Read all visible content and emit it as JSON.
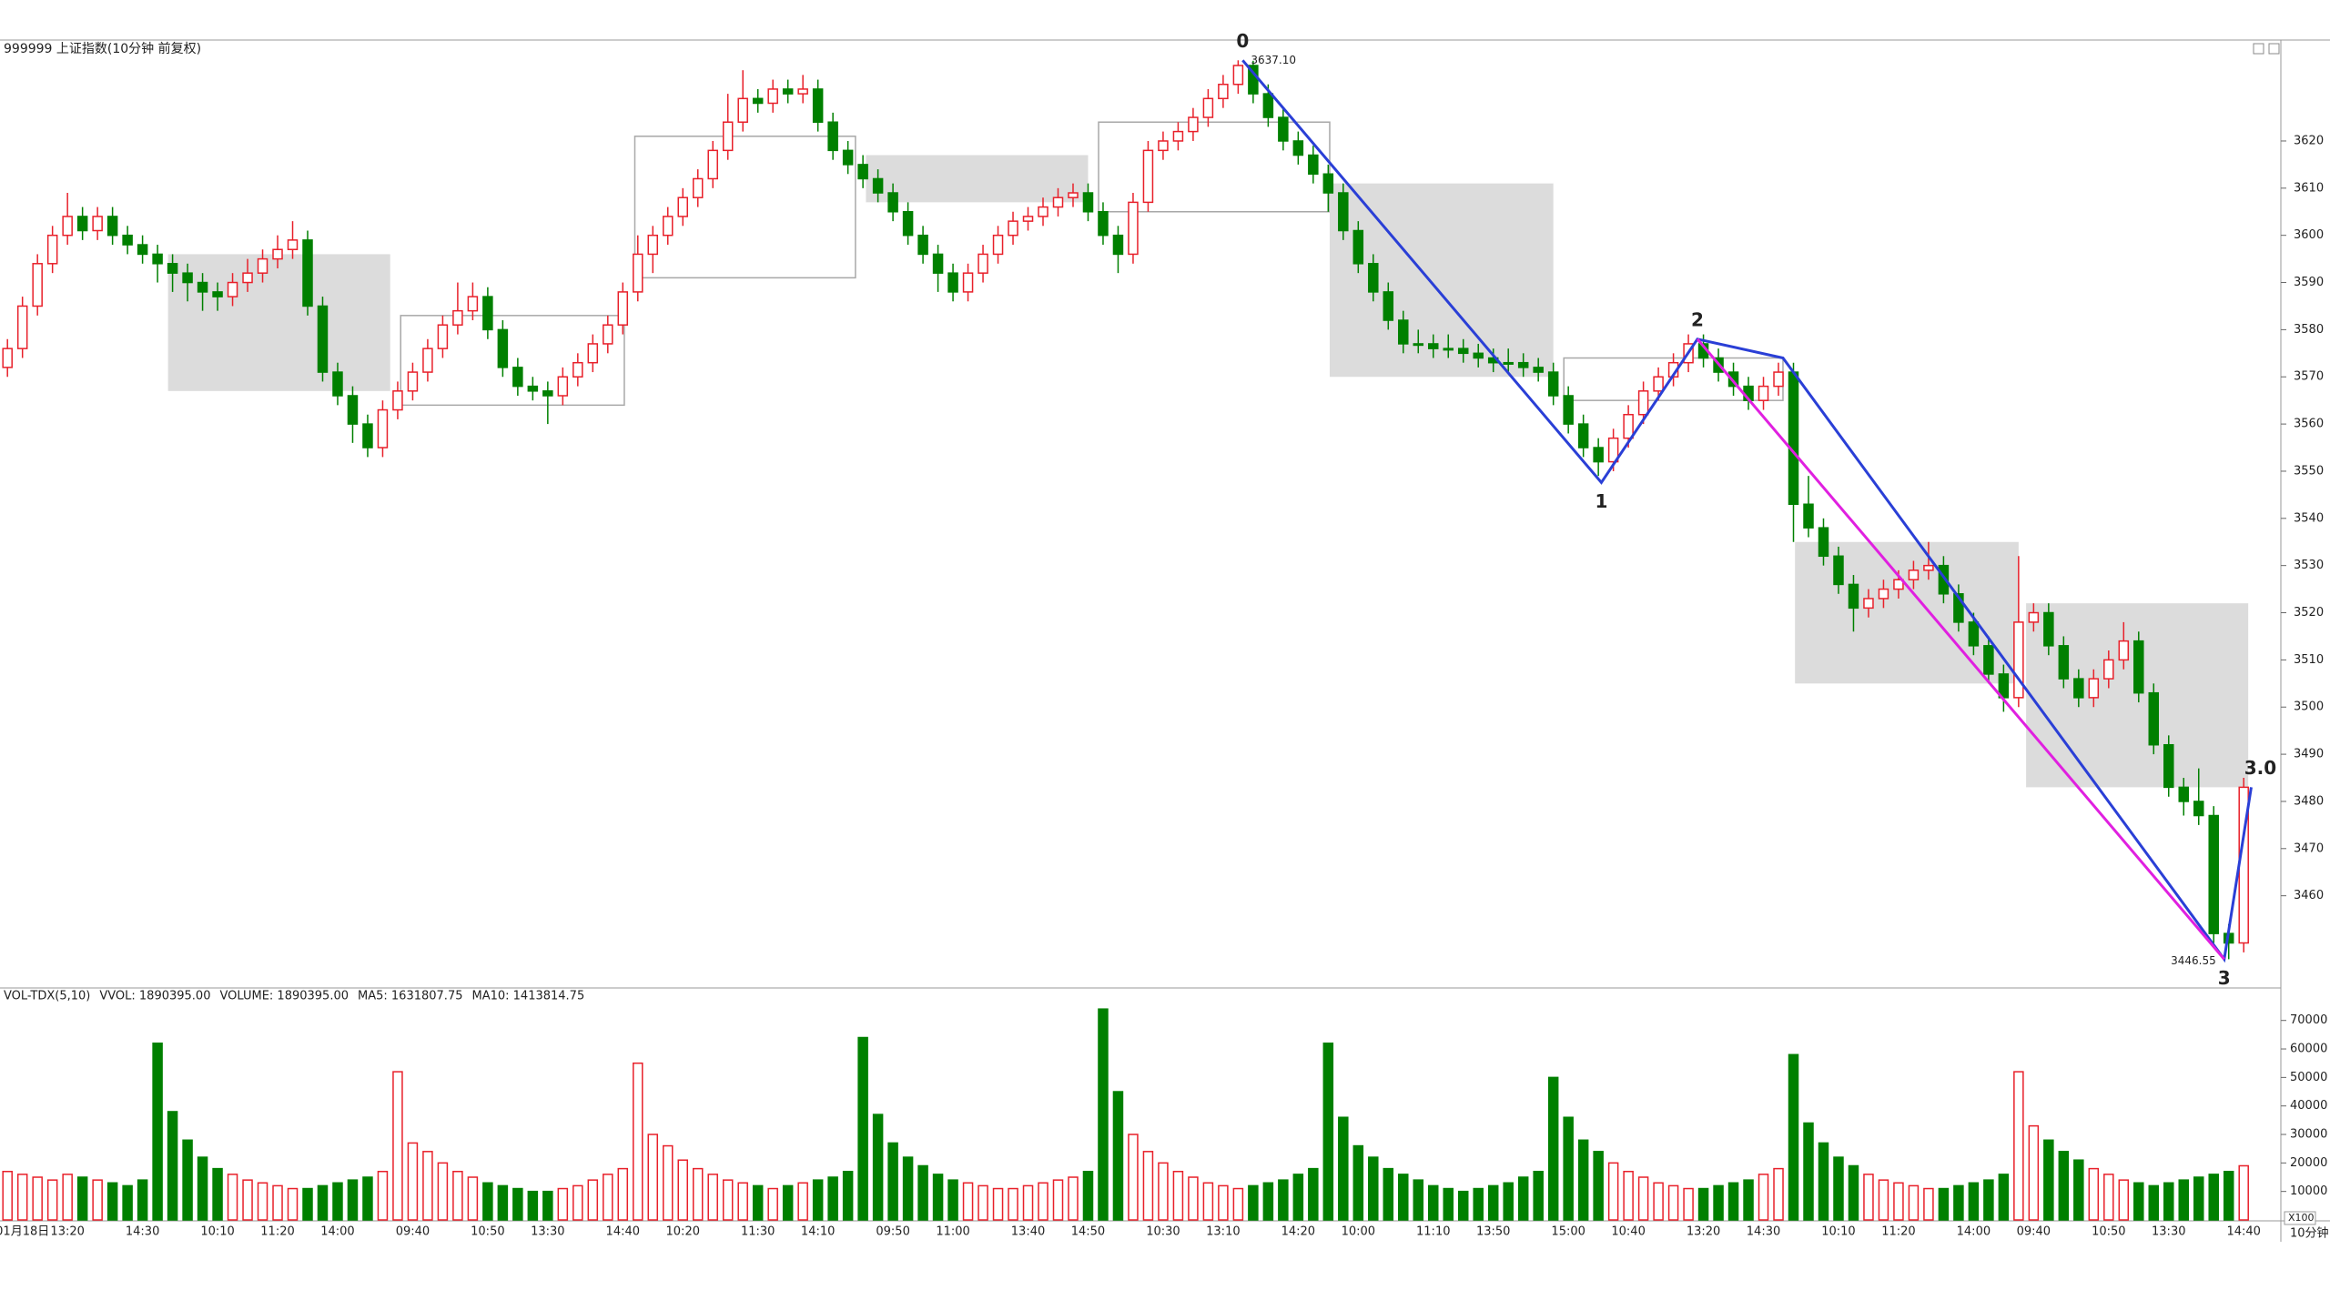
{
  "chart_data": [
    {
      "type": "candlestick",
      "title": "999999 上证指数(10分钟 前复权)",
      "up_color": "#e8202a",
      "down_color": "#008000",
      "box_fill": "#dcdcdc",
      "box_stroke": "#a8a8a8",
      "grid": false,
      "ylim": [
        3442,
        3641.4
      ],
      "yticks": [
        3460,
        3470,
        3480,
        3490,
        3500,
        3510,
        3520,
        3530,
        3540,
        3550,
        3560,
        3570,
        3580,
        3590,
        3600,
        3610,
        3620
      ],
      "categories": [
        null,
        "01月18日",
        null,
        null,
        "13:20",
        null,
        null,
        null,
        null,
        "14:30",
        null,
        null,
        null,
        null,
        "10:10",
        null,
        null,
        null,
        "11:20",
        null,
        null,
        null,
        "14:00",
        null,
        null,
        null,
        null,
        "09:40",
        null,
        null,
        null,
        null,
        "10:50",
        null,
        null,
        null,
        "13:30",
        null,
        null,
        null,
        null,
        "14:40",
        null,
        null,
        null,
        "10:20",
        null,
        null,
        null,
        null,
        "11:30",
        null,
        null,
        null,
        "14:10",
        null,
        null,
        null,
        null,
        "09:50",
        null,
        null,
        null,
        "11:00",
        null,
        null,
        null,
        null,
        "13:40",
        null,
        null,
        null,
        "14:50",
        null,
        null,
        null,
        null,
        "10:30",
        null,
        null,
        null,
        "13:10",
        null,
        null,
        null,
        null,
        "14:20",
        null,
        null,
        null,
        "10:00",
        null,
        null,
        null,
        null,
        "11:10",
        null,
        null,
        null,
        "13:50",
        null,
        null,
        null,
        null,
        "15:00",
        null,
        null,
        null,
        "10:40",
        null,
        null,
        null,
        null,
        "13:20",
        null,
        null,
        null,
        "14:30",
        null,
        null,
        null,
        null,
        "10:10",
        null,
        null,
        null,
        "11:20",
        null,
        null,
        null,
        null,
        "14:00",
        null,
        null,
        null,
        "09:40",
        null,
        null,
        null,
        null,
        "10:50",
        null,
        null,
        null,
        "13:30",
        null,
        null,
        null,
        null,
        "14:40"
      ],
      "open": [
        3572,
        3576,
        3585,
        3594,
        3600,
        3604,
        3601,
        3604,
        3600,
        3598,
        3596,
        3594,
        3592,
        3590,
        3588,
        3587,
        3590,
        3592,
        3595,
        3597,
        3599,
        3585,
        3571,
        3566,
        3560,
        3555,
        3563,
        3567,
        3571,
        3576,
        3581,
        3584,
        3587,
        3580,
        3572,
        3568,
        3567,
        3566,
        3570,
        3573,
        3577,
        3581,
        3588,
        3596,
        3600,
        3604,
        3608,
        3612,
        3618,
        3624,
        3629,
        3628,
        3631,
        3630,
        3631,
        3624,
        3618,
        3615,
        3612,
        3609,
        3605,
        3600,
        3596,
        3592,
        3588,
        3592,
        3596,
        3600,
        3603,
        3604,
        3606,
        3608,
        3609,
        3605,
        3600,
        3596,
        3607,
        3618,
        3620,
        3622,
        3625,
        3629,
        3632,
        3636,
        3630,
        3625,
        3620,
        3617,
        3613,
        3609,
        3601,
        3594,
        3588,
        3582,
        3577,
        3577,
        3576,
        3576,
        3575,
        3574,
        3573,
        3573,
        3572,
        3571,
        3566,
        3560,
        3555,
        3552,
        3557,
        3562,
        3567,
        3570,
        3573,
        3577,
        3574,
        3571,
        3568,
        3565,
        3568,
        3571,
        3543,
        3538,
        3532,
        3526,
        3521,
        3523,
        3525,
        3527,
        3529,
        3530,
        3524,
        3518,
        3513,
        3507,
        3502,
        3518,
        3520,
        3513,
        3506,
        3502,
        3506,
        3510,
        3514,
        3503,
        3492,
        3483,
        3480,
        3477,
        3452,
        3450
      ],
      "high": [
        3578,
        3587,
        3596,
        3602,
        3609,
        3606,
        3606,
        3606,
        3602,
        3600,
        3598,
        3596,
        3594,
        3592,
        3590,
        3592,
        3595,
        3597,
        3600,
        3603,
        3601,
        3587,
        3573,
        3568,
        3562,
        3565,
        3569,
        3573,
        3578,
        3583,
        3590,
        3590,
        3589,
        3582,
        3574,
        3570,
        3569,
        3572,
        3575,
        3579,
        3583,
        3590,
        3600,
        3602,
        3606,
        3610,
        3614,
        3620,
        3630,
        3635,
        3631,
        3633,
        3633,
        3634,
        3633,
        3626,
        3620,
        3617,
        3614,
        3611,
        3607,
        3602,
        3598,
        3594,
        3594,
        3598,
        3602,
        3605,
        3606,
        3608,
        3610,
        3611,
        3611,
        3607,
        3602,
        3609,
        3620,
        3622,
        3624,
        3627,
        3631,
        3634,
        3637.1,
        3637,
        3632,
        3627,
        3622,
        3619,
        3615,
        3611,
        3603,
        3596,
        3590,
        3584,
        3580,
        3579,
        3579,
        3578,
        3577,
        3576,
        3576,
        3575,
        3574,
        3573,
        3568,
        3562,
        3557,
        3559,
        3564,
        3569,
        3572,
        3575,
        3579,
        3579,
        3576,
        3573,
        3570,
        3570,
        3573,
        3573,
        3549,
        3540,
        3534,
        3528,
        3525,
        3527,
        3529,
        3531,
        3535,
        3532,
        3526,
        3520,
        3515,
        3509,
        3532,
        3522,
        3522,
        3515,
        3508,
        3508,
        3512,
        3518,
        3516,
        3505,
        3494,
        3485,
        3487,
        3479,
        3454,
        3485
      ],
      "low": [
        3570,
        3574,
        3583,
        3592,
        3598,
        3599,
        3599,
        3598,
        3596,
        3594,
        3590,
        3588,
        3586,
        3584,
        3584,
        3585,
        3588,
        3590,
        3593,
        3595,
        3583,
        3569,
        3564,
        3556,
        3553,
        3553,
        3561,
        3565,
        3569,
        3574,
        3579,
        3582,
        3578,
        3570,
        3566,
        3565,
        3560,
        3564,
        3568,
        3571,
        3575,
        3579,
        3586,
        3592,
        3598,
        3602,
        3606,
        3610,
        3616,
        3622,
        3626,
        3626,
        3628,
        3628,
        3622,
        3616,
        3613,
        3610,
        3607,
        3603,
        3598,
        3594,
        3588,
        3586,
        3586,
        3590,
        3594,
        3598,
        3601,
        3602,
        3604,
        3606,
        3603,
        3598,
        3592,
        3594,
        3605,
        3616,
        3618,
        3620,
        3623,
        3627,
        3630,
        3628,
        3623,
        3618,
        3615,
        3611,
        3605,
        3599,
        3592,
        3586,
        3580,
        3575,
        3575,
        3574,
        3574,
        3573,
        3572,
        3571,
        3571,
        3570,
        3569,
        3564,
        3558,
        3553,
        3549,
        3550,
        3555,
        3560,
        3565,
        3568,
        3571,
        3572,
        3569,
        3566,
        3563,
        3563,
        3566,
        3535,
        3536,
        3530,
        3524,
        3516,
        3519,
        3521,
        3523,
        3525,
        3527,
        3522,
        3516,
        3511,
        3505,
        3499,
        3500,
        3516,
        3511,
        3504,
        3500,
        3500,
        3504,
        3508,
        3501,
        3490,
        3481,
        3477,
        3475,
        3450,
        3446.55,
        3448
      ],
      "close": [
        3576,
        3585,
        3594,
        3600,
        3604,
        3601,
        3604,
        3600,
        3598,
        3596,
        3594,
        3592,
        3590,
        3588,
        3587,
        3590,
        3592,
        3595,
        3597,
        3599,
        3585,
        3571,
        3566,
        3560,
        3555,
        3563,
        3567,
        3571,
        3576,
        3581,
        3584,
        3587,
        3580,
        3572,
        3568,
        3567,
        3566,
        3570,
        3573,
        3577,
        3581,
        3588,
        3596,
        3600,
        3604,
        3608,
        3612,
        3618,
        3624,
        3629,
        3628,
        3631,
        3630,
        3631,
        3624,
        3618,
        3615,
        3612,
        3609,
        3605,
        3600,
        3596,
        3592,
        3588,
        3592,
        3596,
        3600,
        3603,
        3604,
        3606,
        3608,
        3609,
        3605,
        3600,
        3596,
        3607,
        3618,
        3620,
        3622,
        3625,
        3629,
        3632,
        3636,
        3630,
        3625,
        3620,
        3617,
        3613,
        3609,
        3601,
        3594,
        3588,
        3582,
        3577,
        3577,
        3576,
        3576,
        3575,
        3574,
        3573,
        3573,
        3572,
        3571,
        3566,
        3560,
        3555,
        3552,
        3557,
        3562,
        3567,
        3570,
        3573,
        3577,
        3574,
        3571,
        3568,
        3565,
        3568,
        3571,
        3543,
        3538,
        3532,
        3526,
        3521,
        3523,
        3525,
        3527,
        3529,
        3530,
        3524,
        3518,
        3513,
        3507,
        3502,
        3518,
        3520,
        3513,
        3506,
        3502,
        3506,
        3510,
        3514,
        3503,
        3492,
        3483,
        3480,
        3477,
        3452,
        3450,
        3483
      ],
      "boxes": [
        {
          "x": [
            10.7,
            25.5
          ],
          "y": [
            3567,
            3596
          ],
          "filled": true
        },
        {
          "x": [
            26.2,
            41.1
          ],
          "y": [
            3564,
            3583
          ],
          "filled": false
        },
        {
          "x": [
            41.8,
            56.5
          ],
          "y": [
            3591,
            3621
          ],
          "filled": false
        },
        {
          "x": [
            57.2,
            72.0
          ],
          "y": [
            3607,
            3617
          ],
          "filled": true
        },
        {
          "x": [
            72.7,
            88.1
          ],
          "y": [
            3605,
            3624
          ],
          "filled": false
        },
        {
          "x": [
            88.1,
            103.0
          ],
          "y": [
            3570,
            3611
          ],
          "filled": true
        },
        {
          "x": [
            103.7,
            118.3
          ],
          "y": [
            3565,
            3574
          ],
          "filled": false
        },
        {
          "x": [
            119.1,
            134.0
          ],
          "y": [
            3505,
            3535
          ],
          "filled": true
        },
        {
          "x": [
            134.5,
            149.3
          ],
          "y": [
            3483,
            3522
          ],
          "filled": true
        }
      ],
      "trend_lines": [
        {
          "color": "#2a3fd6",
          "x": [
            82.3,
            106.2,
            112.6,
            118.3,
            147.7,
            149.5
          ],
          "y": [
            3637.1,
            3547.6,
            3578,
            3574,
            3446.55,
            3483
          ],
          "labels": [
            "0",
            "1",
            "2",
            null,
            "3",
            "3.0"
          ]
        },
        {
          "color": "#e020e0",
          "x": [
            112.6,
            147.7
          ],
          "y": [
            3578,
            3446.55
          ]
        }
      ],
      "extreme_labels": [
        {
          "x": 82,
          "value": 3637.1,
          "label": "3637.10"
        },
        {
          "x": 148,
          "value": 3446.55,
          "label": "3446.55"
        }
      ]
    },
    {
      "type": "bar",
      "title": "VOL-TDX(5,10)",
      "indicators": [
        {
          "label": "VVOL: 1890395.00",
          "color": "#1a2fc0"
        },
        {
          "label": "VOLUME: 1890395.00",
          "color": "#d020d0"
        },
        {
          "label": "MA5: 1631807.75",
          "color": "#d020d0"
        },
        {
          "label": "MA10: 1413814.75",
          "color": "#777777"
        }
      ],
      "ylim": [
        0,
        81400
      ],
      "yticks": [
        10000,
        20000,
        30000,
        40000,
        50000,
        60000,
        70000
      ],
      "y_unit_label": "X100",
      "x_unit_label": "10分钟",
      "values": [
        17000,
        16000,
        15000,
        14000,
        16000,
        15000,
        14000,
        13000,
        12000,
        14000,
        62000,
        38000,
        28000,
        22000,
        18000,
        16000,
        14000,
        13000,
        12000,
        11000,
        11000,
        12000,
        13000,
        14000,
        15000,
        17000,
        52000,
        27000,
        24000,
        20000,
        17000,
        15000,
        13000,
        12000,
        11000,
        10000,
        10000,
        11000,
        12000,
        14000,
        16000,
        18000,
        55000,
        30000,
        26000,
        21000,
        18000,
        16000,
        14000,
        13000,
        12000,
        11000,
        12000,
        13000,
        14000,
        15000,
        17000,
        64000,
        37000,
        27000,
        22000,
        19000,
        16000,
        14000,
        13000,
        12000,
        11000,
        11000,
        12000,
        13000,
        14000,
        15000,
        17000,
        74000,
        45000,
        30000,
        24000,
        20000,
        17000,
        15000,
        13000,
        12000,
        11000,
        12000,
        13000,
        14000,
        16000,
        18000,
        62000,
        36000,
        26000,
        22000,
        18000,
        16000,
        14000,
        12000,
        11000,
        10000,
        11000,
        12000,
        13000,
        15000,
        17000,
        50000,
        36000,
        28000,
        24000,
        20000,
        17000,
        15000,
        13000,
        12000,
        11000,
        11000,
        12000,
        13000,
        14000,
        16000,
        18000,
        58000,
        34000,
        27000,
        22000,
        19000,
        16000,
        14000,
        13000,
        12000,
        11000,
        11000,
        12000,
        13000,
        14000,
        16000,
        52000,
        33000,
        28000,
        24000,
        21000,
        18000,
        16000,
        14000,
        13000,
        12000,
        13000,
        14000,
        15000,
        16000,
        17000,
        19000
      ]
    }
  ]
}
